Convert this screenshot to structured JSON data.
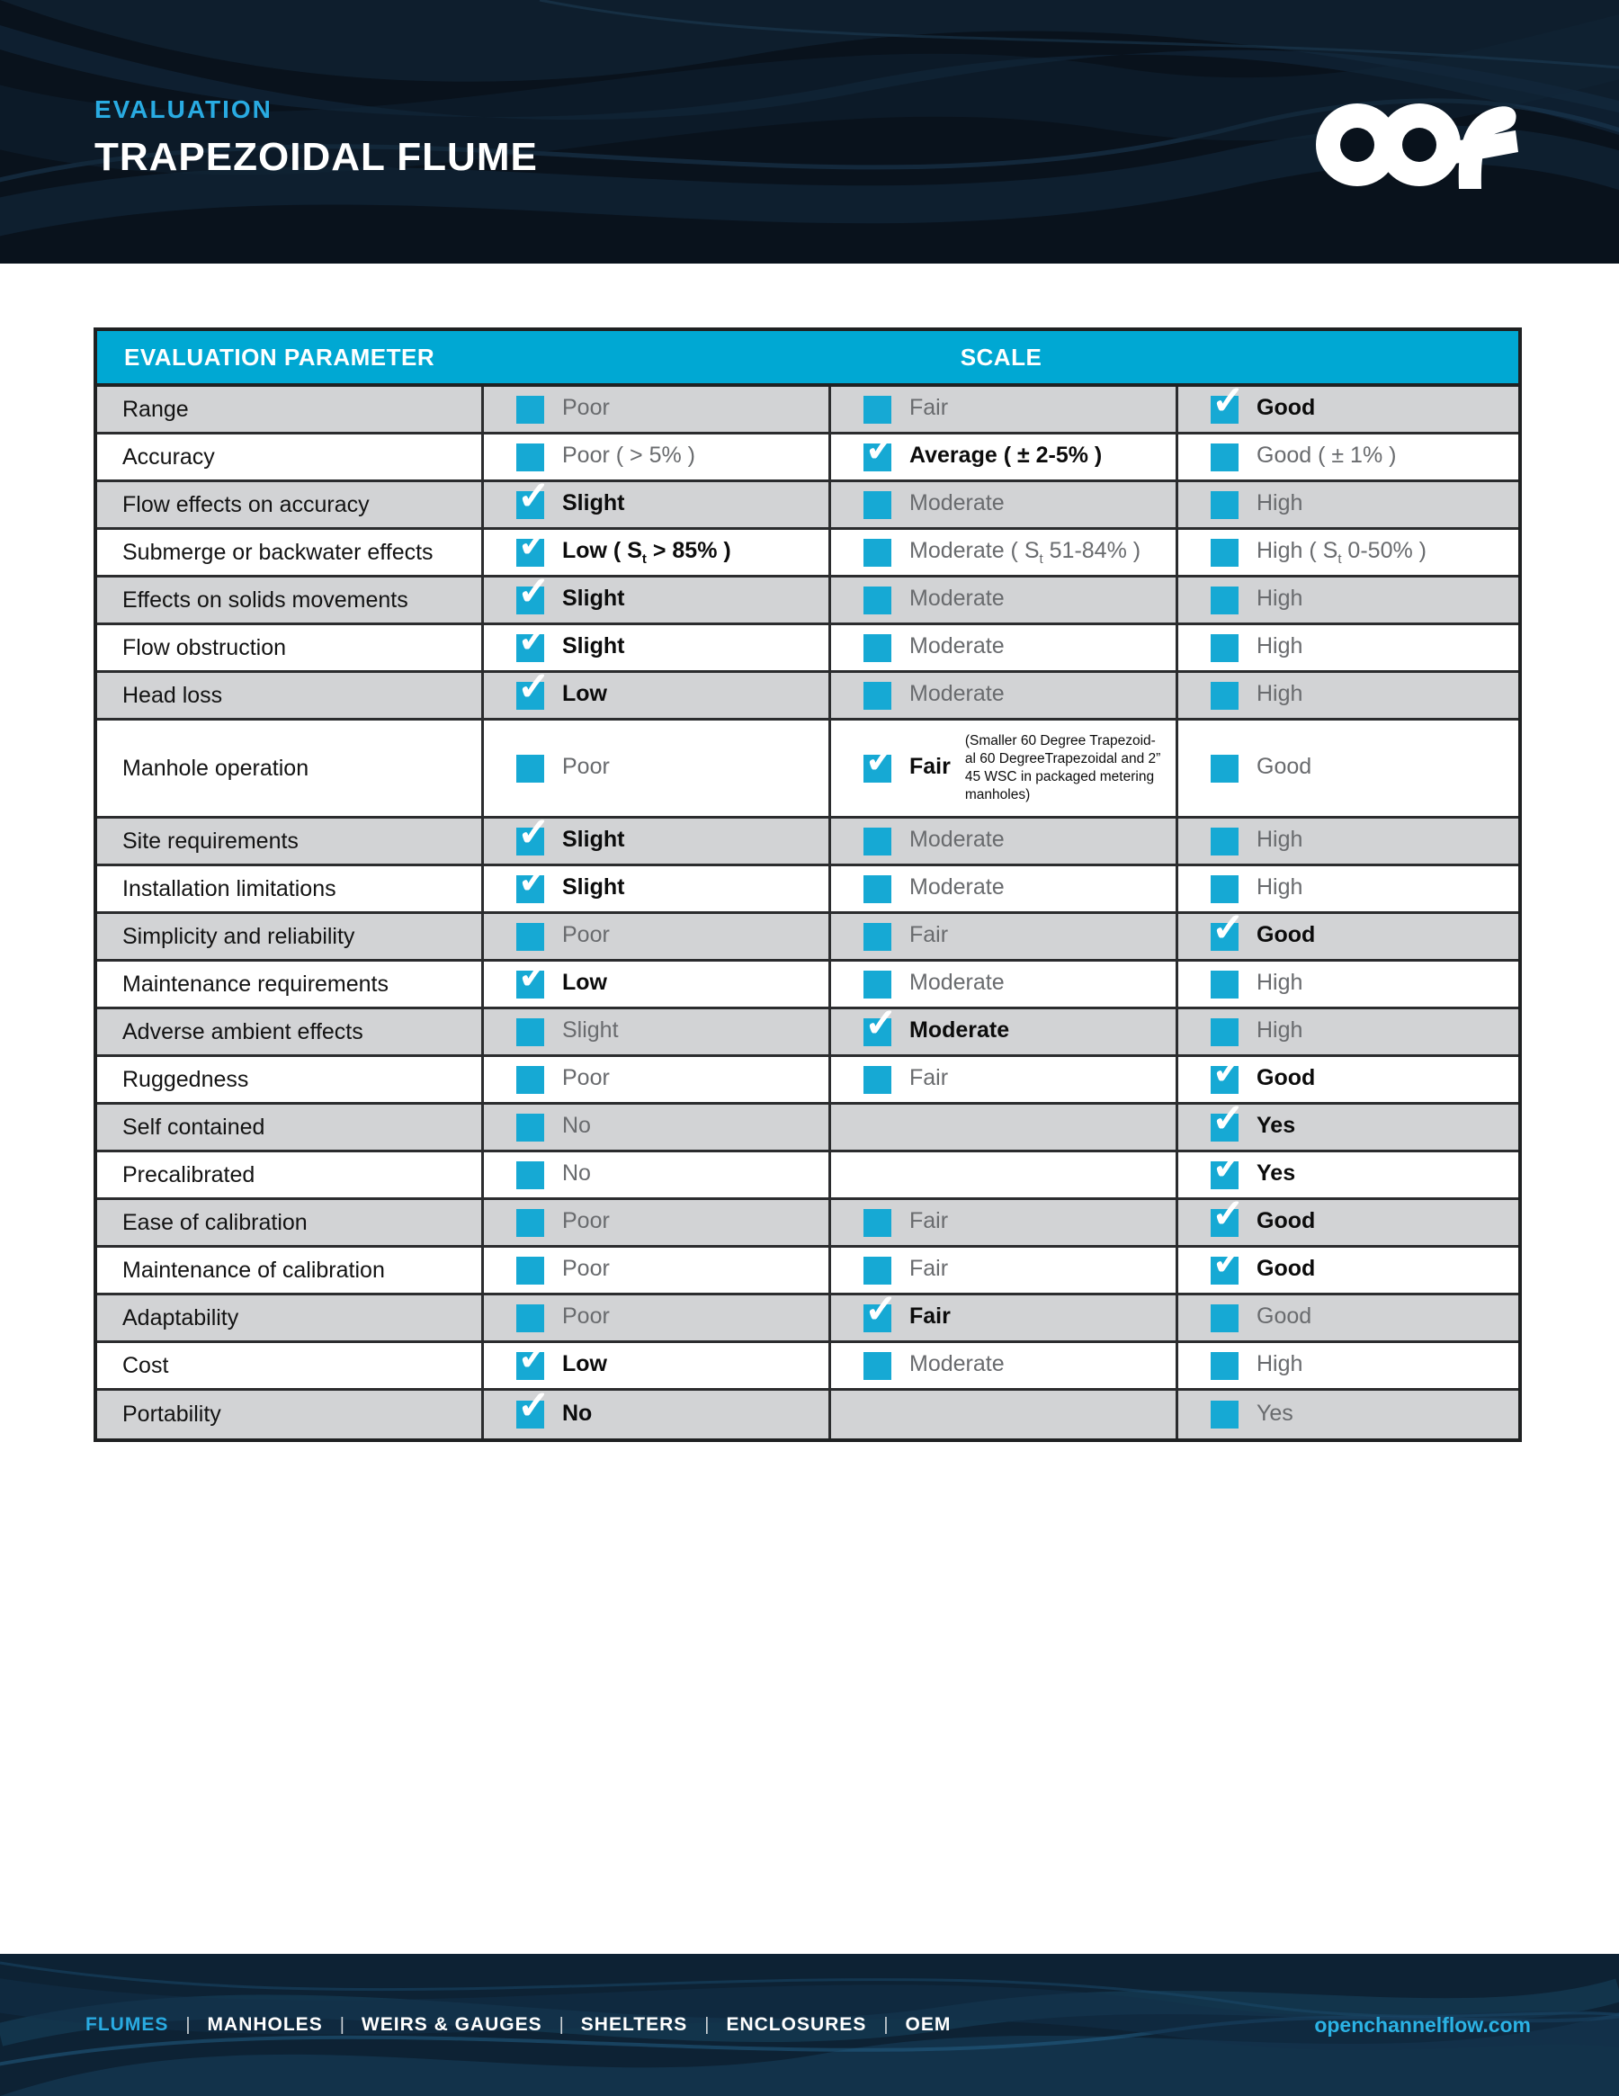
{
  "header": {
    "eyebrow": "EVALUATION",
    "title": "TRAPEZOIDAL FLUME",
    "logo": "OCF"
  },
  "table": {
    "parameter_header": "EVALUATION PARAMETER",
    "scale_header": "SCALE",
    "rows": [
      {
        "param": "Range",
        "cells": [
          {
            "checked": false,
            "label": "Poor"
          },
          {
            "checked": false,
            "label": "Fair"
          },
          {
            "checked": true,
            "label": "Good"
          }
        ]
      },
      {
        "param": "Accuracy",
        "cells": [
          {
            "checked": false,
            "label": "Poor ( > 5% )"
          },
          {
            "checked": true,
            "label": "Average ( ± 2-5% )"
          },
          {
            "checked": false,
            "label": "Good ( ± 1% )"
          }
        ]
      },
      {
        "param": "Flow effects on accuracy",
        "cells": [
          {
            "checked": true,
            "label": "Slight"
          },
          {
            "checked": false,
            "label": "Moderate"
          },
          {
            "checked": false,
            "label": "High"
          }
        ]
      },
      {
        "param": "Submerge or backwater effects",
        "cells": [
          {
            "checked": true,
            "label": "Low ( S",
            "sub": "t",
            "label2": " > 85% )"
          },
          {
            "checked": false,
            "label": "Moderate ( S",
            "sub": "t",
            "label2": " 51-84% )"
          },
          {
            "checked": false,
            "label": "High ( S",
            "sub": "t",
            "label2": " 0-50% )"
          }
        ]
      },
      {
        "param": "Effects on solids movements",
        "cells": [
          {
            "checked": true,
            "label": "Slight"
          },
          {
            "checked": false,
            "label": "Moderate"
          },
          {
            "checked": false,
            "label": "High"
          }
        ]
      },
      {
        "param": "Flow obstruction",
        "cells": [
          {
            "checked": true,
            "label": "Slight"
          },
          {
            "checked": false,
            "label": "Moderate"
          },
          {
            "checked": false,
            "label": "High"
          }
        ]
      },
      {
        "param": "Head loss",
        "cells": [
          {
            "checked": true,
            "label": "Low"
          },
          {
            "checked": false,
            "label": "Moderate"
          },
          {
            "checked": false,
            "label": "High"
          }
        ]
      },
      {
        "param": "Manhole operation",
        "cells": [
          {
            "checked": false,
            "label": "Poor"
          },
          {
            "checked": true,
            "label": "Fair",
            "note_lines": [
              "(Smaller 60 Degree Trapezoid-",
              "al 60 DegreeTrapezoidal and 2”",
              "45 WSC in packaged metering",
              "manholes)"
            ]
          },
          {
            "checked": false,
            "label": "Good"
          }
        ]
      },
      {
        "param": "Site requirements",
        "cells": [
          {
            "checked": true,
            "label": "Slight"
          },
          {
            "checked": false,
            "label": "Moderate"
          },
          {
            "checked": false,
            "label": "High"
          }
        ]
      },
      {
        "param": "Installation limitations",
        "cells": [
          {
            "checked": true,
            "label": "Slight"
          },
          {
            "checked": false,
            "label": "Moderate"
          },
          {
            "checked": false,
            "label": "High"
          }
        ]
      },
      {
        "param": "Simplicity and reliability",
        "cells": [
          {
            "checked": false,
            "label": "Poor"
          },
          {
            "checked": false,
            "label": "Fair"
          },
          {
            "checked": true,
            "label": "Good"
          }
        ]
      },
      {
        "param": "Maintenance requirements",
        "cells": [
          {
            "checked": true,
            "label": "Low"
          },
          {
            "checked": false,
            "label": "Moderate"
          },
          {
            "checked": false,
            "label": "High"
          }
        ]
      },
      {
        "param": "Adverse ambient effects",
        "cells": [
          {
            "checked": false,
            "label": "Slight"
          },
          {
            "checked": true,
            "label": "Moderate"
          },
          {
            "checked": false,
            "label": "High"
          }
        ]
      },
      {
        "param": "Ruggedness",
        "cells": [
          {
            "checked": false,
            "label": "Poor"
          },
          {
            "checked": false,
            "label": "Fair"
          },
          {
            "checked": true,
            "label": "Good"
          }
        ]
      },
      {
        "param": "Self contained",
        "cells": [
          {
            "checked": false,
            "label": "No"
          },
          null,
          {
            "checked": true,
            "label": "Yes"
          }
        ]
      },
      {
        "param": "Precalibrated",
        "cells": [
          {
            "checked": false,
            "label": "No"
          },
          null,
          {
            "checked": true,
            "label": "Yes"
          }
        ]
      },
      {
        "param": "Ease of calibration",
        "cells": [
          {
            "checked": false,
            "label": "Poor"
          },
          {
            "checked": false,
            "label": "Fair"
          },
          {
            "checked": true,
            "label": "Good"
          }
        ]
      },
      {
        "param": "Maintenance of calibration",
        "cells": [
          {
            "checked": false,
            "label": "Poor"
          },
          {
            "checked": false,
            "label": "Fair"
          },
          {
            "checked": true,
            "label": "Good"
          }
        ]
      },
      {
        "param": "Adaptability",
        "cells": [
          {
            "checked": false,
            "label": "Poor"
          },
          {
            "checked": true,
            "label": "Fair"
          },
          {
            "checked": false,
            "label": "Good"
          }
        ]
      },
      {
        "param": "Cost",
        "cells": [
          {
            "checked": true,
            "label": "Low"
          },
          {
            "checked": false,
            "label": "Moderate"
          },
          {
            "checked": false,
            "label": "High"
          }
        ]
      },
      {
        "param": "Portability",
        "cells": [
          {
            "checked": true,
            "label": "No"
          },
          null,
          {
            "checked": false,
            "label": "Yes"
          }
        ]
      }
    ]
  },
  "footer": {
    "links": [
      {
        "label": "FLUMES",
        "active": true
      },
      {
        "label": "MANHOLES",
        "active": false
      },
      {
        "label": "WEIRS & GAUGES",
        "active": false
      },
      {
        "label": "SHELTERS",
        "active": false
      },
      {
        "label": "ENCLOSURES",
        "active": false
      },
      {
        "label": "OEM",
        "active": false
      }
    ],
    "separator": "|",
    "site": "openchannelflow.com"
  },
  "colors": {
    "accent": "#00a8d3",
    "accent_light": "#29abe2",
    "row_gray": "#d2d3d5",
    "border_dark": "#1f2122",
    "muted_text": "#696b6e",
    "navy": "#09121c"
  }
}
